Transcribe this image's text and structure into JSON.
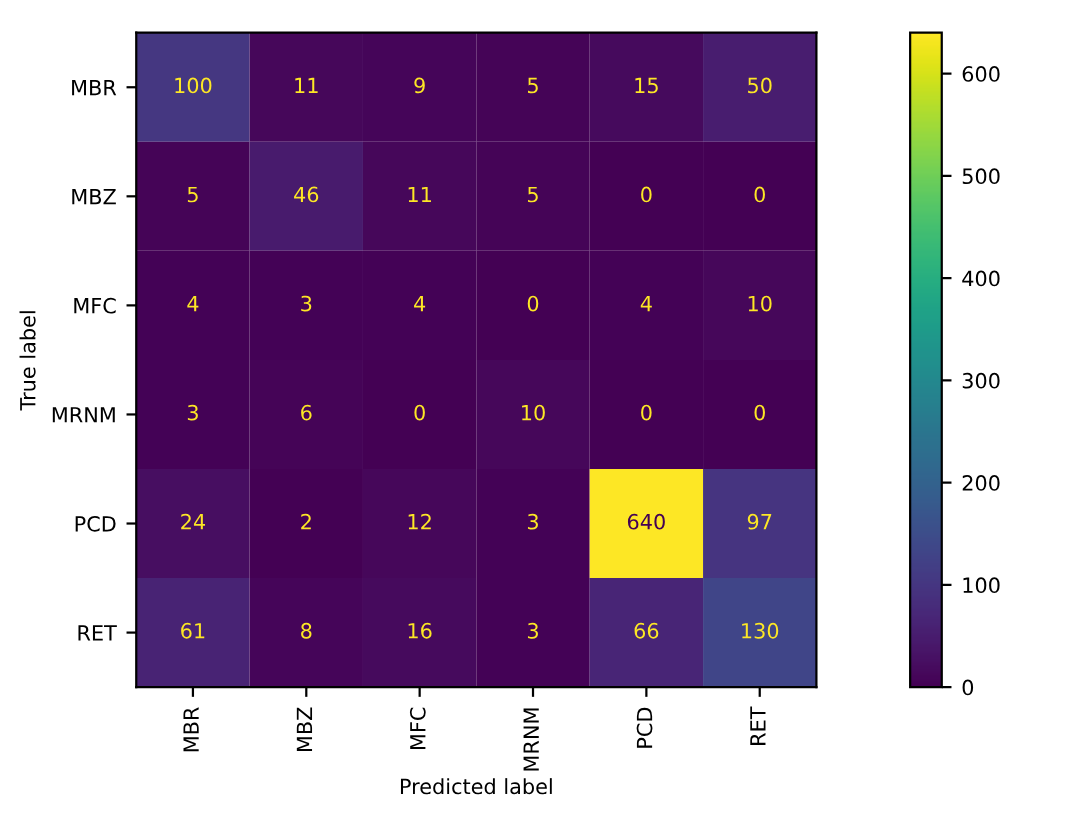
{
  "chart_data": {
    "type": "heatmap",
    "xlabel": "Predicted label",
    "ylabel": "True label",
    "categories": [
      "MBR",
      "MBZ",
      "MFC",
      "MRNM",
      "PCD",
      "RET"
    ],
    "y_categories": [
      "MBR",
      "MBZ",
      "MFC",
      "MRNM",
      "PCD",
      "RET"
    ],
    "cells": [
      [
        100,
        11,
        9,
        5,
        15,
        50
      ],
      [
        5,
        46,
        11,
        5,
        0,
        0
      ],
      [
        4,
        3,
        4,
        0,
        4,
        10
      ],
      [
        3,
        6,
        0,
        10,
        0,
        0
      ],
      [
        24,
        2,
        12,
        3,
        640,
        97
      ],
      [
        61,
        8,
        16,
        3,
        66,
        130
      ]
    ],
    "clim": [
      0,
      640
    ],
    "cticks": [
      0,
      100,
      200,
      300,
      400,
      500,
      600
    ],
    "data_labels": true
  }
}
